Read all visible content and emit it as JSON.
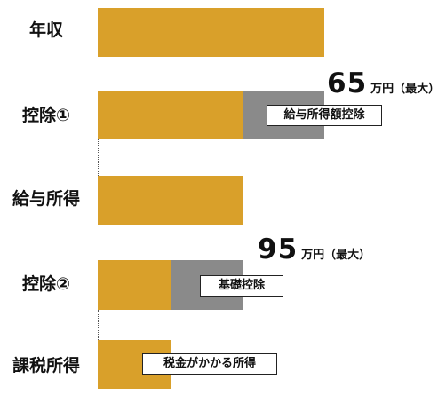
{
  "rows": [
    {
      "label": "年収"
    },
    {
      "label": "控除①"
    },
    {
      "label": "給与所得"
    },
    {
      "label": "控除②"
    },
    {
      "label": "課税所得"
    }
  ],
  "annotations": {
    "deduction1": {
      "number": "65",
      "unit": "万円（最大）",
      "tag": "給与所得額控除"
    },
    "deduction2": {
      "number": "95",
      "unit": "万円（最大）",
      "tag": "基礎控除"
    },
    "taxable": {
      "tag": "税金がかかる所得"
    }
  },
  "colors": {
    "bar": "#d9a02a",
    "deduction": "#8a8a8a"
  }
}
